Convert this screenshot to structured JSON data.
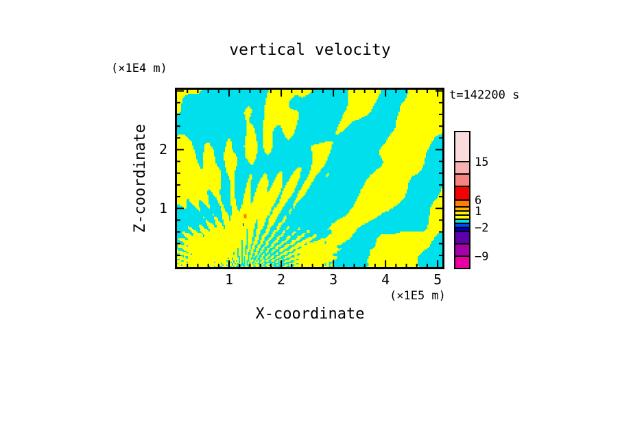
{
  "title": "vertical velocity",
  "timestamp": "t=142200 s",
  "axes": {
    "x": {
      "label": "X-coordinate",
      "unit": "(×1E5 m)"
    },
    "z": {
      "label": "Z-coordinate",
      "unit": "(×1E4 m)"
    }
  },
  "colorbar": {
    "segments": [
      {
        "color": "#FBDCDC",
        "height": 43.5
      },
      {
        "color": "#F8B0B0",
        "height": 18
      },
      {
        "color": "#F5837E",
        "height": 18
      },
      {
        "color": "#F80000",
        "height": 20
      },
      {
        "color": "#FF7D00",
        "height": 10.8
      },
      {
        "color": "#FFB300",
        "height": 6
      },
      {
        "color": "#FFF000",
        "height": 6
      },
      {
        "color": "#FFFF00",
        "height": 6
      },
      {
        "color": "#00E0EC",
        "height": 5.4
      },
      {
        "color": "#0048F8",
        "height": 6
      },
      {
        "color": "#0000A8",
        "height": 6
      },
      {
        "color": "#6000AC",
        "height": 18
      },
      {
        "color": "#A800A8",
        "height": 18.3
      },
      {
        "color": "#E800A0",
        "height": 16.5
      }
    ],
    "labels": [
      {
        "text": "15",
        "after_segment": 0
      },
      {
        "text": "6",
        "after_segment": 3
      },
      {
        "text": "1",
        "after_segment": 5
      },
      {
        "text": "−2",
        "after_segment": 9
      },
      {
        "text": "−9",
        "after_segment": 12
      }
    ]
  },
  "chart_data": {
    "type": "heatmap",
    "title": "vertical velocity",
    "time_annotation": "t=142200 s",
    "xlabel": "X-coordinate",
    "x_unit": "(×1E5 m)",
    "x_range": [
      0,
      5.09
    ],
    "x_major_ticks": [
      1,
      2,
      3,
      4,
      5
    ],
    "x_minor_step": 0.2,
    "zlabel": "Z-coordinate",
    "z_unit": "(×1E4 m)",
    "z_range": [
      0,
      3.02
    ],
    "z_major_ticks": [
      1,
      2,
      3
    ],
    "z_labeled_ticks": [
      2,
      1
    ],
    "z_minor_step": 0.2,
    "legend_levels": [
      15,
      6,
      1,
      -2,
      -9
    ],
    "field": {
      "positive_color": "#FFFF00",
      "negative_color": "#00E0EC",
      "description": "binary filled contour of vertical velocity: yellow = weakly positive band, cyan = weakly negative band; fan of fine filaments converging near x=1.3E5 m at the surface, broad diagonal bands rising to the upper right, fine vertical striations along the bottom left, mostly cyan strip along the top"
    },
    "extremes": [
      {
        "x": 0.255,
        "y": 0.7,
        "w": 2,
        "h": 3,
        "color": "#FF7D00"
      },
      {
        "x": 0.247,
        "y": 0.757,
        "w": 1,
        "h": 2,
        "color": "#0048F8"
      }
    ]
  }
}
